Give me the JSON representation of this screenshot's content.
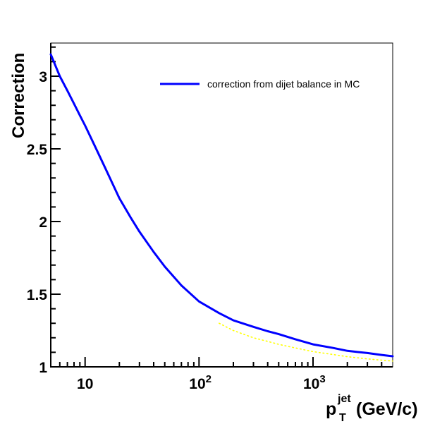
{
  "chart_data": {
    "type": "line",
    "title": "",
    "ylabel": "Correction",
    "xlabel_parts": {
      "p": "p",
      "sup": "jet",
      "sub": "T",
      "rest": "(GeV/c)"
    },
    "xscale": "log",
    "yscale": "linear",
    "xlim": [
      5,
      5000
    ],
    "ylim": [
      1,
      3.228
    ],
    "grid": false,
    "axis_color": "#000000",
    "background_color": "#ffffff",
    "x_major_ticks": [
      10,
      100,
      1000
    ],
    "x_tick_labels": [
      {
        "base": "10",
        "exp": ""
      },
      {
        "base": "10",
        "exp": "2"
      },
      {
        "base": "10",
        "exp": "3"
      }
    ],
    "y_major_ticks": [
      1,
      1.5,
      2,
      2.5,
      3
    ],
    "y_tick_labels": [
      "1",
      "1.5",
      "2",
      "2.5",
      "3"
    ],
    "y_minor_step": 0.1,
    "legend_position": "top-left-of-center",
    "legend": [
      {
        "label": "correction from dijet balance in MC",
        "color": "#0000ff",
        "style": "solid"
      }
    ],
    "series": [
      {
        "name": "unlabeled-dotted-curve",
        "color": "#ffff00",
        "style": "dotted",
        "width": 1.6,
        "points": [
          [
            150,
            1.3
          ],
          [
            200,
            1.25
          ],
          [
            300,
            1.2
          ],
          [
            400,
            1.175
          ],
          [
            500,
            1.155
          ],
          [
            700,
            1.13
          ],
          [
            1000,
            1.105
          ],
          [
            1500,
            1.085
          ],
          [
            2000,
            1.07
          ],
          [
            3000,
            1.055
          ],
          [
            4000,
            1.046
          ],
          [
            5000,
            1.04
          ]
        ]
      },
      {
        "name": "correction-from-dijet-balance-in-MC",
        "color": "#0000ff",
        "style": "solid",
        "width": 3,
        "points": [
          [
            5,
            3.15
          ],
          [
            6,
            3.0
          ],
          [
            7,
            2.9
          ],
          [
            8,
            2.81
          ],
          [
            9,
            2.73
          ],
          [
            10,
            2.66
          ],
          [
            12,
            2.53
          ],
          [
            15,
            2.37
          ],
          [
            20,
            2.16
          ],
          [
            25,
            2.03
          ],
          [
            30,
            1.93
          ],
          [
            40,
            1.79
          ],
          [
            50,
            1.69
          ],
          [
            70,
            1.56
          ],
          [
            100,
            1.45
          ],
          [
            150,
            1.37
          ],
          [
            200,
            1.32
          ],
          [
            300,
            1.275
          ],
          [
            400,
            1.245
          ],
          [
            500,
            1.225
          ],
          [
            700,
            1.19
          ],
          [
            1000,
            1.155
          ],
          [
            1500,
            1.13
          ],
          [
            2000,
            1.11
          ],
          [
            3000,
            1.095
          ],
          [
            4000,
            1.082
          ],
          [
            5000,
            1.073
          ]
        ]
      }
    ]
  }
}
